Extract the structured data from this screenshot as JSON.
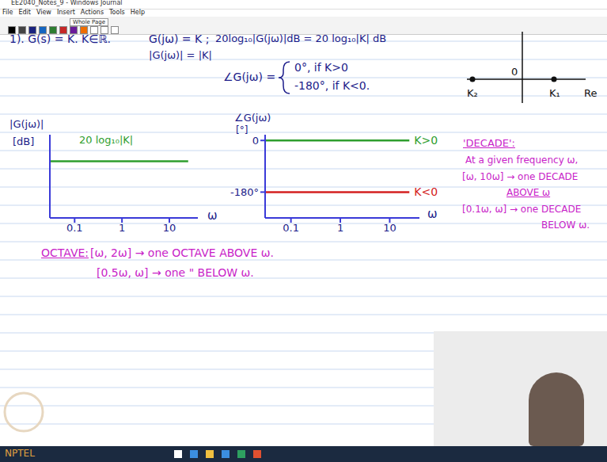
{
  "window": {
    "title": "EE2040_Notes_9 - Windows Journal",
    "menu": [
      "File",
      "Edit",
      "View",
      "Insert",
      "Actions",
      "Tools",
      "Help"
    ],
    "zoom": "Whole Page"
  },
  "notes": {
    "line1": [
      "1). G(s) = K.  K∈ℝ.",
      "G(jω) = K ;",
      "20log₁₀|G(jω)|dB = 20 log₁₀|K| dB"
    ],
    "magnitude": "|G(jω)| = |K|",
    "phase_lhs": "∠G(jω) =",
    "phase_cases": [
      "0°, if K>0",
      "-180°, if K<0."
    ],
    "octave": {
      "head": "OCTAVE:",
      "rows": [
        "[ω, 2ω] → one OCTAVE ABOVE ω.",
        "[0.5ω, ω] → one \" BELOW ω."
      ]
    },
    "decade": {
      "head": "'DECADE':",
      "lines": [
        "At a given frequency ω,",
        "[ω, 10ω] → one DECADE",
        "ABOVE ω",
        "[0.1ω, ω] → one DECADE",
        "BELOW ω."
      ]
    }
  },
  "real_axis": {
    "labels": [
      "K₂",
      "0",
      "K₁",
      "Re"
    ]
  },
  "footer": "NPTEL",
  "chart_data": [
    {
      "type": "line",
      "x_label": "ω",
      "y_label": "|G(jω)|",
      "y_unit": "[dB]",
      "annotation": "20 log₁₀|K|",
      "x": [
        0.03,
        25
      ],
      "values": [
        0.68,
        0.68
      ],
      "color": "#2e9e2e",
      "xlim": [
        0.03,
        40
      ],
      "xticks": [
        0.1,
        1,
        10
      ],
      "ylim": [
        0,
        1
      ],
      "log": "x",
      "tick_labels": "x"
    },
    {
      "type": "line",
      "x_label": "ω",
      "y_label": "∠G(jω)",
      "y_unit": "[°]",
      "x": [
        0.03,
        25
      ],
      "series": [
        {
          "name": "K>0",
          "color": "#2e9e2e",
          "values": [
            0,
            0
          ]
        },
        {
          "name": "K<0",
          "color": "#d42020",
          "values": [
            -180,
            -180
          ]
        }
      ],
      "xlim": [
        0.03,
        40
      ],
      "xticks": [
        0.1,
        1,
        10
      ],
      "ylim": [
        -270,
        20
      ],
      "yticks": [
        0,
        {
          "value": -180,
          "label": "-180°"
        }
      ],
      "log": "x"
    }
  ]
}
